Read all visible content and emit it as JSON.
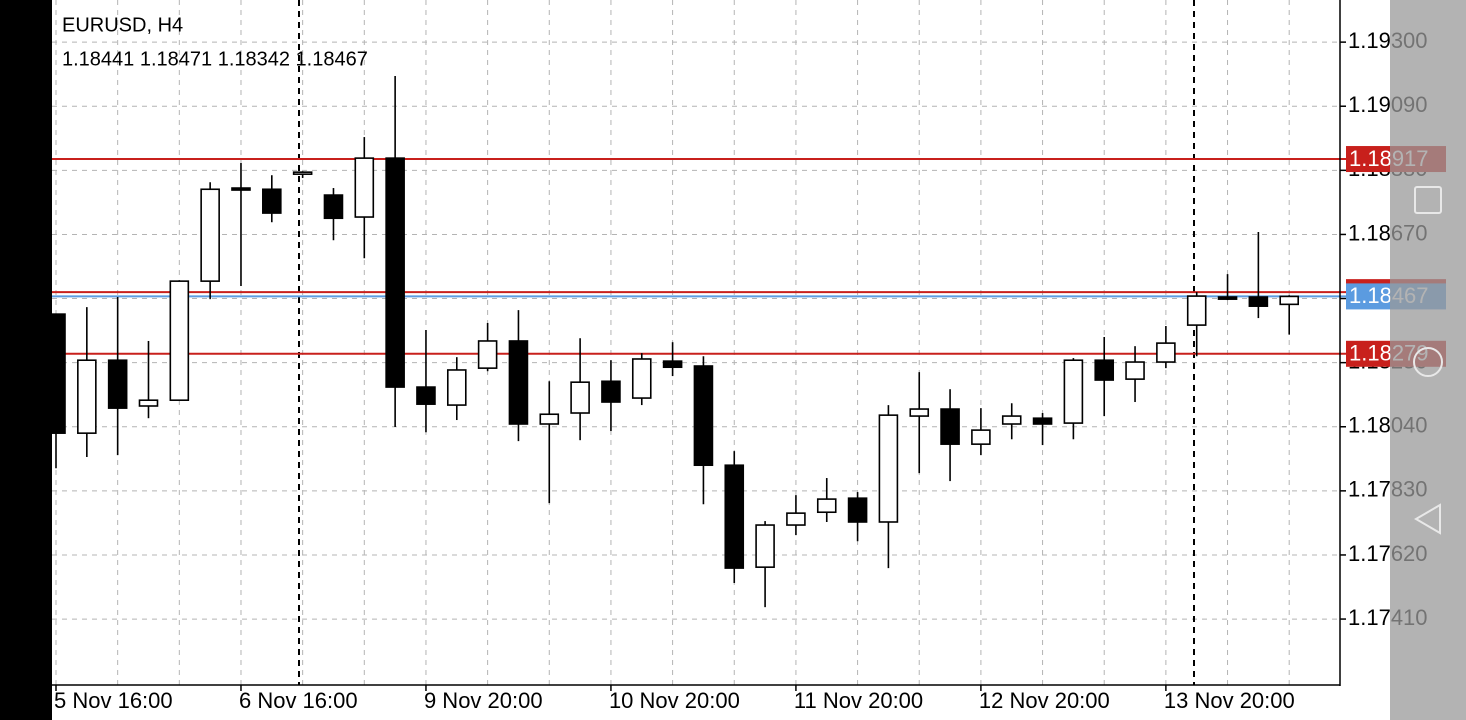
{
  "chart_data": {
    "type": "candlestick",
    "title": "EURUSD, H4",
    "subtitle": "1.18441 1.18471 1.18342 1.18467",
    "categories": [
      "5 Nov 16:00",
      null,
      null,
      null,
      null,
      null,
      "6 Nov 16:00",
      null,
      null,
      null,
      null,
      null,
      "9 Nov 20:00",
      null,
      null,
      null,
      null,
      null,
      "10 Nov 20:00",
      null,
      null,
      null,
      null,
      null,
      "11 Nov 20:00",
      null,
      null,
      null,
      null,
      null,
      "12 Nov 20:00",
      null,
      null,
      null,
      null,
      null,
      "13 Nov 20:00",
      null,
      null,
      null,
      null
    ],
    "open": [
      1.18409,
      1.18019,
      1.18258,
      1.18108,
      1.18127,
      1.18517,
      1.18822,
      1.18818,
      1.18874,
      1.18799,
      1.18727,
      1.1892,
      1.1817,
      1.18111,
      1.18232,
      1.18321,
      1.18049,
      1.18085,
      1.18189,
      1.18134,
      1.18255,
      1.18239,
      1.17914,
      1.1758,
      1.17718,
      1.1776,
      1.17806,
      1.17728,
      1.18075,
      1.18098,
      1.17983,
      1.18049,
      1.18068,
      1.18052,
      1.18258,
      1.18196,
      1.18252,
      1.18373,
      1.18465,
      1.18465,
      1.18441
    ],
    "high": [
      1.18409,
      1.18432,
      1.18465,
      1.18321,
      1.1852,
      1.18841,
      1.18904,
      1.18864,
      1.18877,
      1.18822,
      1.18989,
      1.19189,
      1.18357,
      1.18268,
      1.1838,
      1.18422,
      1.18189,
      1.1833,
      1.18258,
      1.18281,
      1.18317,
      1.18271,
      1.1796,
      1.17731,
      1.17816,
      1.17872,
      1.17826,
      1.18111,
      1.18219,
      1.18163,
      1.18101,
      1.18117,
      1.18085,
      1.18265,
      1.18334,
      1.18304,
      1.1837,
      1.18481,
      1.1854,
      1.18678,
      1.18471
    ],
    "low": [
      1.17904,
      1.17941,
      1.17947,
      1.18068,
      1.18127,
      1.18458,
      1.18501,
      1.1871,
      1.18855,
      1.18651,
      1.18592,
      1.18039,
      1.18022,
      1.18062,
      1.18222,
      1.17993,
      1.1779,
      1.17996,
      1.18026,
      1.18111,
      1.18206,
      1.17786,
      1.17528,
      1.17449,
      1.17685,
      1.17728,
      1.17665,
      1.17577,
      1.17888,
      1.17862,
      1.17947,
      1.17999,
      1.1798,
      1.17999,
      1.18075,
      1.18121,
      1.18232,
      1.18271,
      1.18455,
      1.18396,
      1.18342
    ],
    "close": [
      1.18019,
      1.18258,
      1.18101,
      1.18127,
      1.18517,
      1.18818,
      1.18818,
      1.1874,
      1.18874,
      1.18723,
      1.1892,
      1.1817,
      1.18114,
      1.18226,
      1.18321,
      1.18049,
      1.18081,
      1.18186,
      1.18121,
      1.18262,
      1.18235,
      1.17914,
      1.17577,
      1.17718,
      1.17757,
      1.17803,
      1.17728,
      1.18078,
      1.18098,
      1.17983,
      1.18029,
      1.18075,
      1.18049,
      1.18258,
      1.18193,
      1.18252,
      1.18314,
      1.18468,
      1.18458,
      1.18435,
      1.18467
    ],
    "up_color": "#ffffff",
    "down_color": "#000000",
    "ylim": [
      1.17194,
      1.19438
    ],
    "yticks": [
      {
        "value": 1.193,
        "label": "1.19300"
      },
      {
        "value": 1.1909,
        "label": "1.19090"
      },
      {
        "value": 1.1888,
        "label": "1.18880"
      },
      {
        "value": 1.1867,
        "label": "1.18670"
      },
      {
        "value": 1.1846,
        "label": "1.18460"
      },
      {
        "value": 1.1825,
        "label": "1.18250"
      },
      {
        "value": 1.1804,
        "label": "1.18040"
      },
      {
        "value": 1.1783,
        "label": "1.17830"
      },
      {
        "value": 1.1762,
        "label": "1.17620"
      },
      {
        "value": 1.1741,
        "label": "1.17410"
      }
    ],
    "grid": true,
    "lines": [
      {
        "value": 1.18917,
        "color": "#c8201c",
        "show_label": true
      },
      {
        "value": 1.18481,
        "color": "#c8201c",
        "show_label": false
      },
      {
        "value": 1.18467,
        "color": "#5b9be0",
        "show_label": true
      },
      {
        "value": 1.18279,
        "color": "#c8201c",
        "show_label": true
      }
    ]
  }
}
